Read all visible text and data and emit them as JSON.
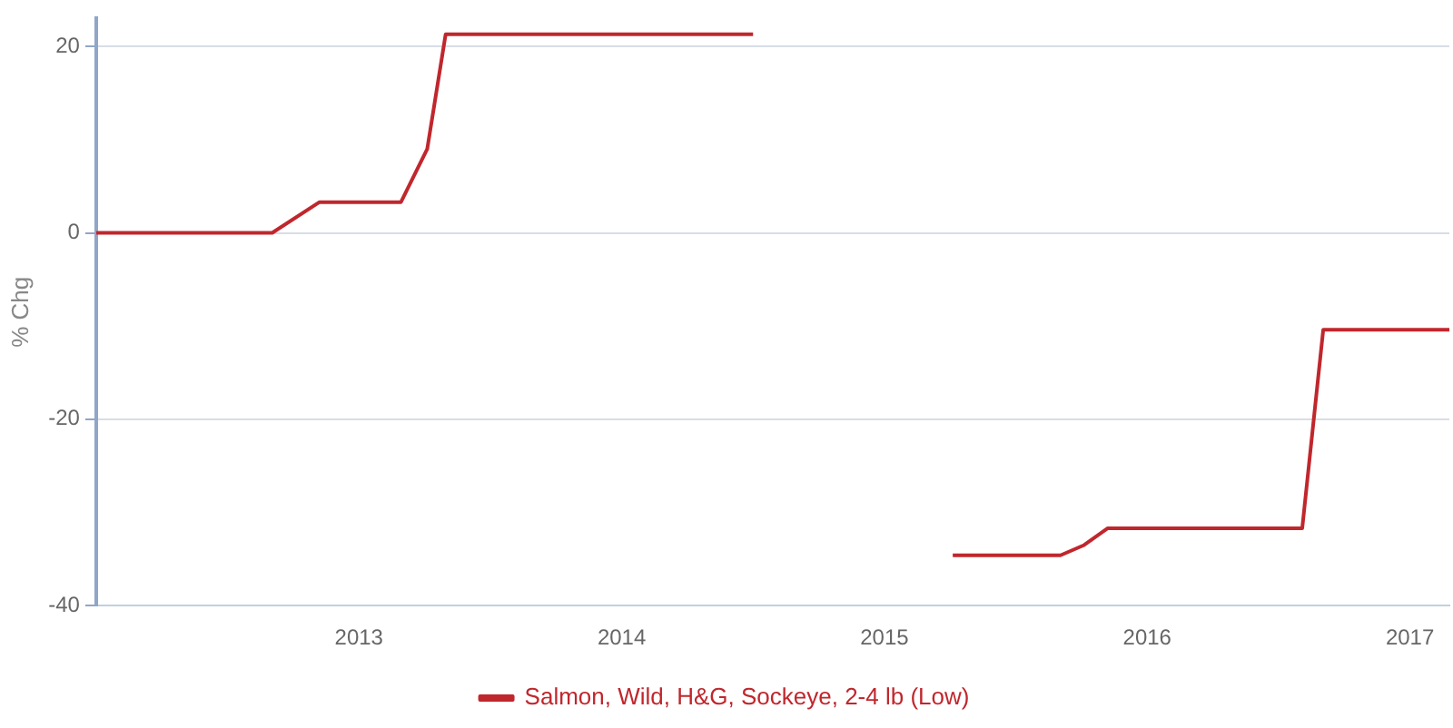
{
  "chart_data": {
    "type": "line",
    "ylabel": "% Chg",
    "x": [
      2012.0,
      2012.67,
      2012.85,
      2013.16,
      2013.26,
      2013.33,
      2014.5,
      2014.9,
      2015.26,
      2015.67,
      2015.76,
      2015.85,
      2016.59,
      2016.67,
      2017.15
    ],
    "series": [
      {
        "name": "Salmon, Wild, H&G, Sockeye, 2-4 lb (Low)",
        "color": "#c0272d",
        "values": [
          0,
          0,
          3.3,
          3.3,
          9,
          21.3,
          21.3,
          null,
          -34.6,
          -34.6,
          -33.5,
          -31.7,
          -31.7,
          -10.4,
          -10.4
        ]
      }
    ],
    "xlim": [
      2012.0,
      2017.15
    ],
    "xticks": [
      2013,
      2014,
      2015,
      2016,
      2017
    ],
    "ylim": [
      -40,
      23
    ],
    "yticks": [
      -40,
      -20,
      0,
      20
    ],
    "grid": "y",
    "legend": "bottom",
    "marker": "none",
    "line_style": "solid"
  }
}
